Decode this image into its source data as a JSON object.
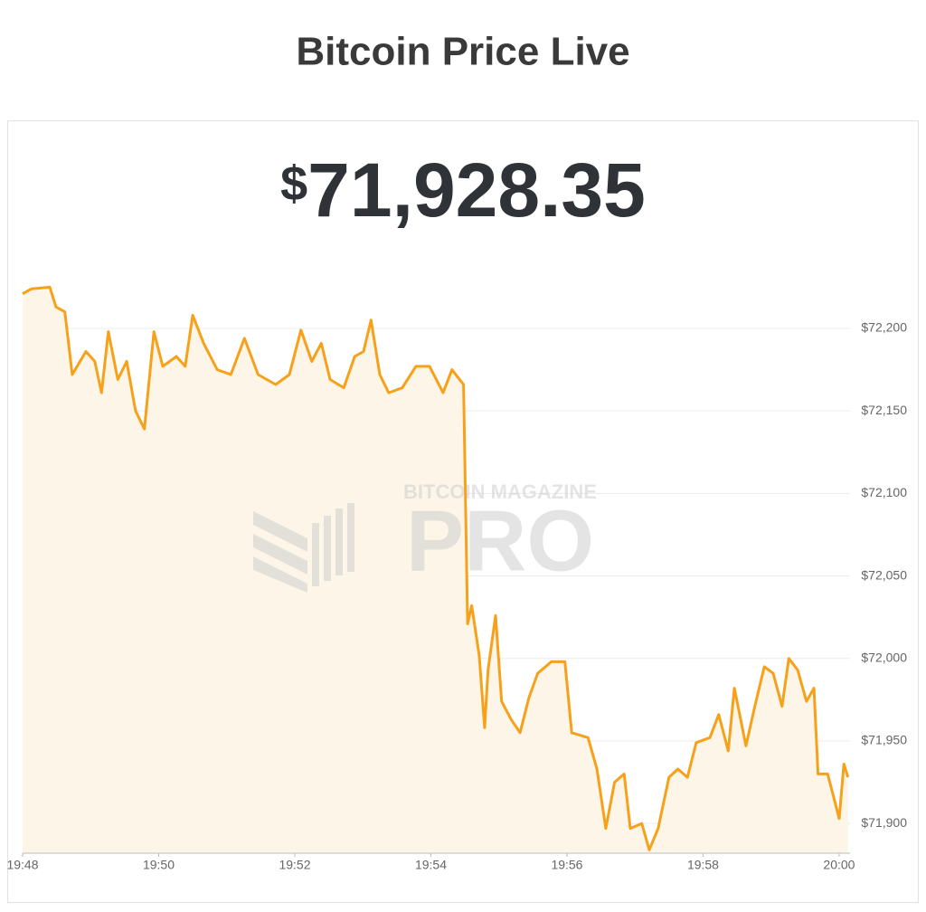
{
  "chart_data": {
    "type": "line",
    "title": "Bitcoin Price Live",
    "price_symbol": "$",
    "price": "71,928.35",
    "watermark": {
      "top": "BITCOIN MAGAZINE",
      "main": "PRO"
    },
    "x": [
      1188,
      1188.13,
      1188.4,
      1188.49,
      1188.62,
      1188.73,
      1188.93,
      1189.06,
      1189.16,
      1189.26,
      1189.4,
      1189.53,
      1189.66,
      1189.79,
      1189.93,
      1190.06,
      1190.26,
      1190.39,
      1190.5,
      1190.66,
      1190.86,
      1191.06,
      1191.26,
      1191.46,
      1191.72,
      1191.92,
      1192.09,
      1192.25,
      1192.39,
      1192.52,
      1192.72,
      1192.88,
      1193.01,
      1193.12,
      1193.25,
      1193.38,
      1193.58,
      1193.78,
      1193.98,
      1194.18,
      1194.31,
      1194.48,
      1194.54,
      1194.6,
      1194.71,
      1194.79,
      1194.84,
      1194.95,
      1195.04,
      1195.18,
      1195.31,
      1195.44,
      1195.57,
      1195.77,
      1195.97,
      1196.07,
      1196.31,
      1196.44,
      1196.57,
      1196.7,
      1196.84,
      1196.93,
      1197.1,
      1197.21,
      1197.34,
      1197.5,
      1197.63,
      1197.77,
      1197.9,
      1198.1,
      1198.23,
      1198.37,
      1198.46,
      1198.63,
      1198.76,
      1198.9,
      1199.03,
      1199.16,
      1199.26,
      1199.39,
      1199.52,
      1199.63,
      1199.69,
      1199.83,
      1199.92,
      1200.0,
      1200.07,
      1200.13
    ],
    "series": [
      {
        "color": "#f7a11a",
        "fill": "#fdf5e8",
        "values": [
          72221,
          72224,
          72225,
          72213,
          72210,
          72172,
          72186,
          72180,
          72161,
          72198,
          72169,
          72180,
          72150,
          72139,
          72198,
          72177,
          72183,
          72177,
          72208,
          72191,
          72175,
          72172,
          72194,
          72172,
          72166,
          72172,
          72199,
          72180,
          72191,
          72169,
          72164,
          72183,
          72186,
          72205,
          72172,
          72161,
          72164,
          72177,
          72177,
          72161,
          72175,
          72166,
          72021,
          72032,
          72002,
          71958,
          71993,
          72026,
          71974,
          71963,
          71955,
          71976,
          71991,
          71998,
          71998,
          71955,
          71952,
          71933,
          71897,
          71925,
          71930,
          71897,
          71900,
          71884,
          71897,
          71928,
          71933,
          71928,
          71949,
          71952,
          71966,
          71944,
          71982,
          71947,
          71971,
          71995,
          71991,
          71971,
          72000,
          71993,
          71974,
          71982,
          71930,
          71930,
          71916,
          71903,
          71936,
          71928
        ]
      }
    ],
    "xlim": [
      1188,
      1200.16
    ],
    "xticks": [
      {
        "value": 1188,
        "label": "19:48"
      },
      {
        "value": 1190,
        "label": "19:50"
      },
      {
        "value": 1192,
        "label": "19:52"
      },
      {
        "value": 1194,
        "label": "19:54"
      },
      {
        "value": 1196,
        "label": "19:56"
      },
      {
        "value": 1198,
        "label": "19:58"
      },
      {
        "value": 1200,
        "label": "20:00"
      }
    ],
    "ylim": [
      71882,
      72240
    ],
    "yticks": [
      {
        "value": 71900,
        "label": "$71,900"
      },
      {
        "value": 71950,
        "label": "$71,950"
      },
      {
        "value": 72000,
        "label": "$72,000"
      },
      {
        "value": 72050,
        "label": "$72,050"
      },
      {
        "value": 72100,
        "label": "$72,100"
      },
      {
        "value": 72150,
        "label": "$72,150"
      },
      {
        "value": 72200,
        "label": "$72,200"
      }
    ],
    "grid": true
  }
}
